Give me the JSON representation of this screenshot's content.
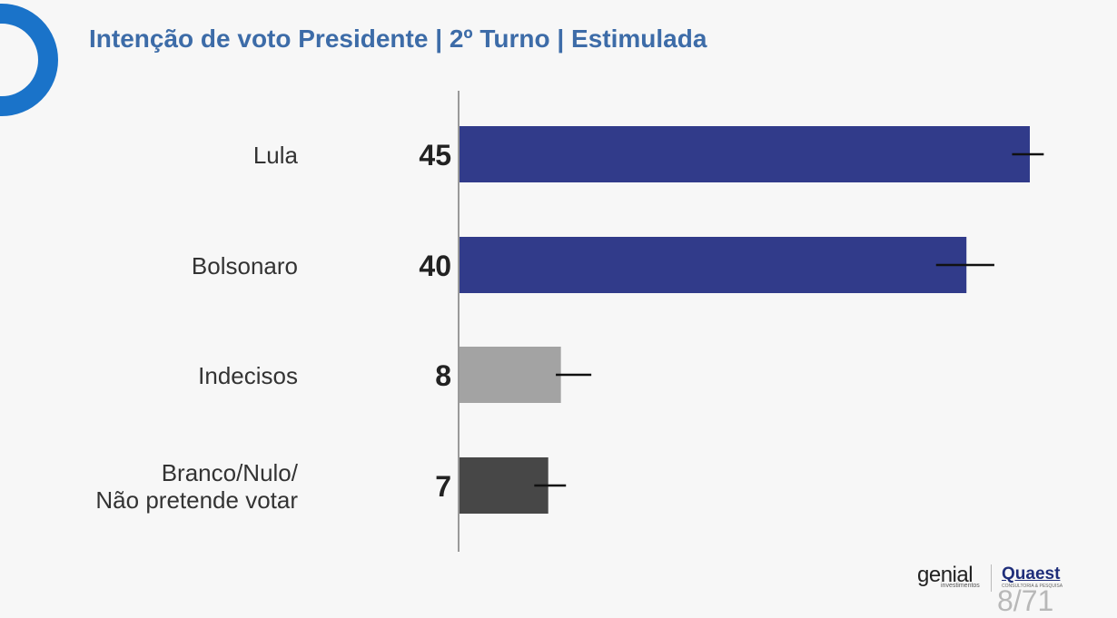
{
  "title": "Intenção de voto Presidente | 2º Turno | Estimulada",
  "chart_data": {
    "type": "bar",
    "orientation": "horizontal",
    "title": "Intenção de voto Presidente | 2º Turno | Estimulada",
    "xlabel": "",
    "ylabel": "",
    "xlim": [
      0,
      45
    ],
    "grid": false,
    "categories": [
      [
        "Lula"
      ],
      [
        "Bolsonaro"
      ],
      [
        "Indecisos"
      ],
      [
        "Branco/Nulo/",
        "Não pretende votar"
      ]
    ],
    "values": [
      45,
      40,
      8,
      7
    ],
    "data_labels": [
      "45",
      "40",
      "8",
      "7"
    ],
    "error_bars": [
      [
        43.6,
        46.1
      ],
      [
        37.6,
        42.2
      ],
      [
        7.6,
        10.4
      ],
      [
        5.9,
        8.4
      ]
    ],
    "colors": [
      "#313b8a",
      "#313b8a",
      "#a3a3a3",
      "#474747"
    ]
  },
  "branding": {
    "sponsor": "genial",
    "sponsor_sub": "investimentos",
    "pollster": "Quaest",
    "pollster_sub": "CONSULTORIA & PESQUISA"
  },
  "page": "8/71",
  "colors": {
    "accent": "#1a73c9",
    "title": "#3d6ca8",
    "axis": "#9a9a9a"
  }
}
